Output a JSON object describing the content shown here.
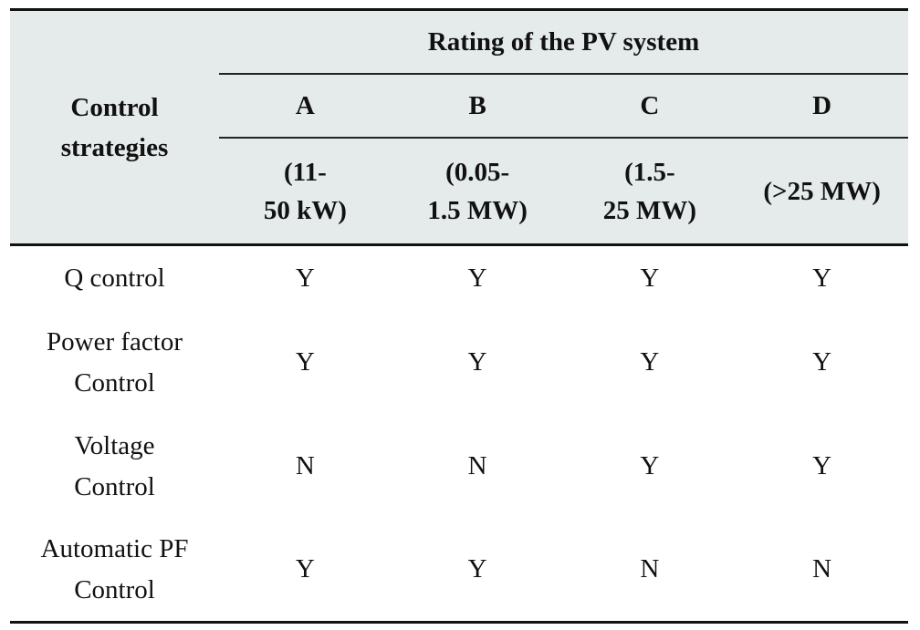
{
  "header": {
    "row_label": "Control strategies",
    "group_label": "Rating of the PV system",
    "columns": [
      {
        "letter": "A",
        "range": "(11-50 kW)"
      },
      {
        "letter": "B",
        "range": "(0.05-1.5 MW)"
      },
      {
        "letter": "C",
        "range": "(1.5-25 MW)"
      },
      {
        "letter": "D",
        "range": "(>25 MW)"
      }
    ],
    "row_label_lines": [
      "Control",
      "strategies"
    ],
    "range_lines": [
      [
        "(11-",
        "50 kW)"
      ],
      [
        "(0.05-",
        "1.5 MW)"
      ],
      [
        "(1.5-",
        "25 MW)"
      ],
      [
        "(>25 MW)"
      ]
    ]
  },
  "rows": [
    {
      "strategy_lines": [
        "Q control"
      ],
      "values": [
        "Y",
        "Y",
        "Y",
        "Y"
      ]
    },
    {
      "strategy_lines": [
        "Power factor",
        "Control"
      ],
      "values": [
        "Y",
        "Y",
        "Y",
        "Y"
      ]
    },
    {
      "strategy_lines": [
        "Voltage",
        "Control"
      ],
      "values": [
        "N",
        "N",
        "Y",
        "Y"
      ]
    },
    {
      "strategy_lines": [
        "Automatic PF",
        "Control"
      ],
      "values": [
        "Y",
        "Y",
        "N",
        "N"
      ]
    }
  ]
}
